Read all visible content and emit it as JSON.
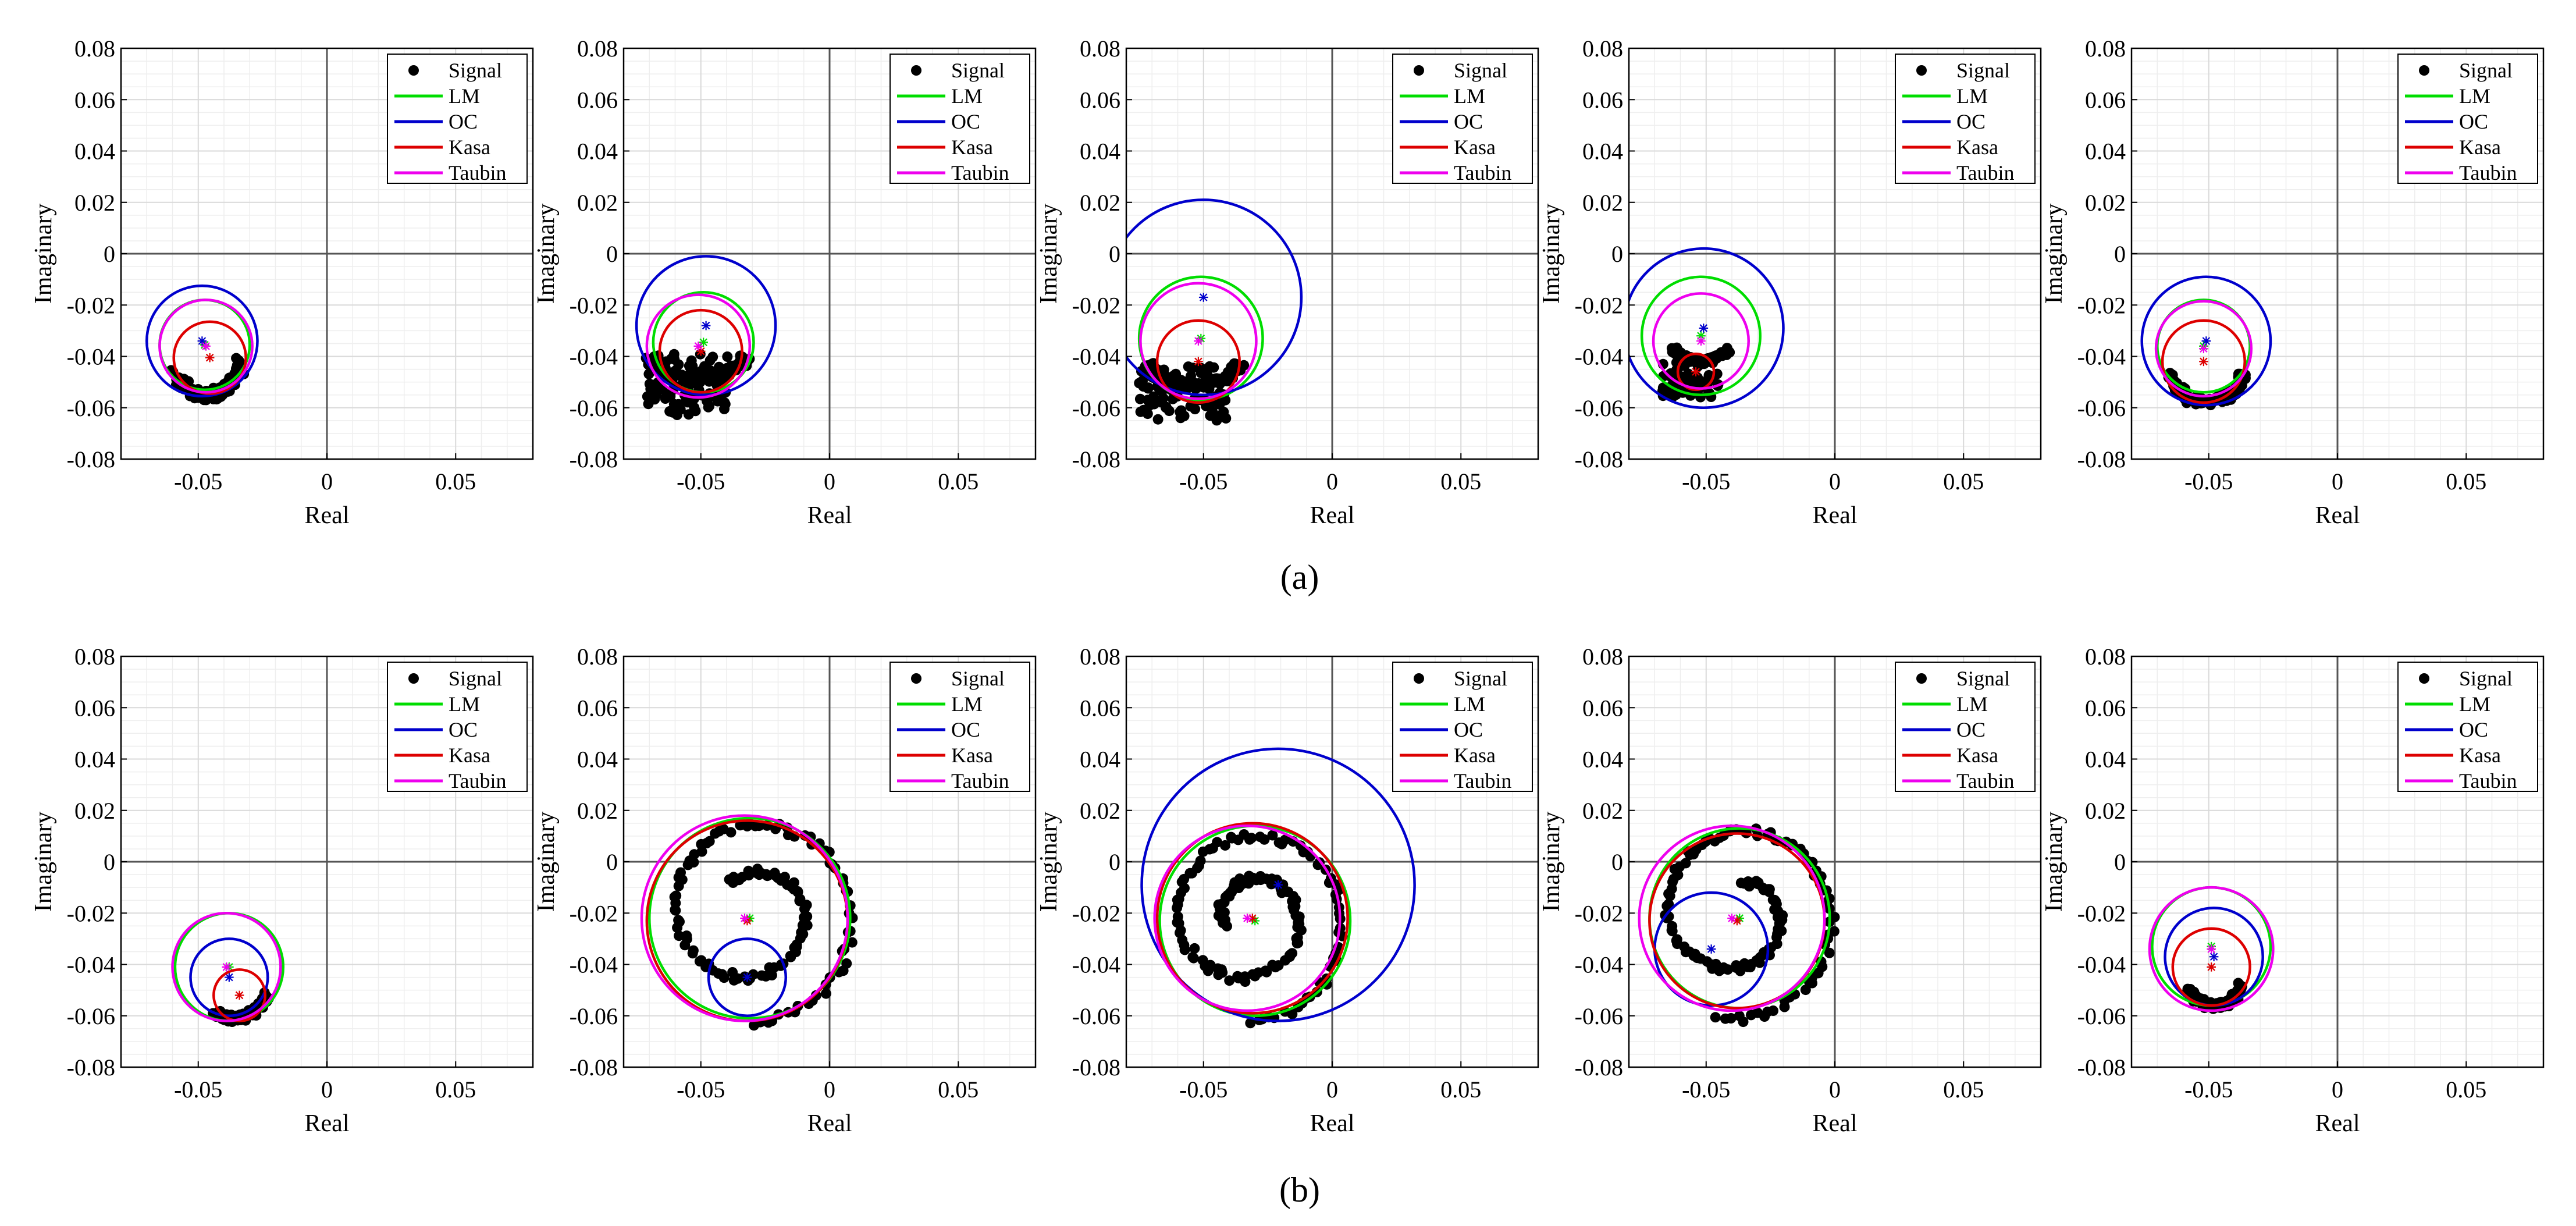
{
  "figure": {
    "panel_labels": [
      "(a)",
      "(b)"
    ]
  },
  "colors": {
    "signal": "#000000",
    "LM": "#00dd00",
    "OC": "#0000cc",
    "Kasa": "#dd0000",
    "Taubin": "#ee00ee",
    "axis_line": "#555555",
    "grid": "#d9d9d9",
    "grid_minor": "#eeeeee"
  },
  "chart_data": [
    {
      "type": "scatter",
      "row": "a",
      "title": "",
      "xlabel": "Real",
      "ylabel": "Imaginary",
      "xlim": [
        -0.08,
        0.08
      ],
      "ylim": [
        -0.08,
        0.08
      ],
      "xticks": [
        -0.05,
        0,
        0.05
      ],
      "xtick_labels": [
        "-0.05",
        "0",
        "0.05"
      ],
      "yticks": [
        0.08,
        0.06,
        0.04,
        0.02,
        0,
        -0.02,
        -0.04,
        -0.06,
        -0.08
      ],
      "ytick_labels": [
        "0.08",
        "0.06",
        "0.04",
        "0.02",
        "0",
        "-0.02",
        "-0.04",
        "-0.06",
        "-0.08"
      ],
      "legend": [
        "Signal",
        "LM",
        "OC",
        "Kasa",
        "Taubin"
      ],
      "legend_location": "top-right",
      "signal": {
        "shape": "arc",
        "cx": -0.047,
        "cy": -0.037,
        "rx": 0.014,
        "ry": 0.018,
        "a0": 210,
        "a1": 345,
        "spread": 0.0022,
        "n": 110,
        "seed": 11
      },
      "circles": [
        {
          "name": "LM",
          "cx": -0.0475,
          "cy": -0.0355,
          "r": 0.0175
        },
        {
          "name": "OC",
          "cx": -0.0485,
          "cy": -0.034,
          "r": 0.0215
        },
        {
          "name": "Kasa",
          "cx": -0.0455,
          "cy": -0.0405,
          "r": 0.014
        },
        {
          "name": "Taubin",
          "cx": -0.047,
          "cy": -0.036,
          "r": 0.018
        }
      ]
    },
    {
      "type": "scatter",
      "row": "a",
      "title": "",
      "xlabel": "Real",
      "ylabel": "Imaginary",
      "xlim": [
        -0.08,
        0.08
      ],
      "ylim": [
        -0.08,
        0.08
      ],
      "xticks": [
        -0.05,
        0,
        0.05
      ],
      "xtick_labels": [
        "-0.05",
        "0",
        "0.05"
      ],
      "yticks": [
        0.08,
        0.06,
        0.04,
        0.02,
        0,
        -0.02,
        -0.04,
        -0.06,
        -0.08
      ],
      "ytick_labels": [
        "0.08",
        "0.06",
        "0.04",
        "0.02",
        "0",
        "-0.02",
        "-0.04",
        "-0.06",
        "-0.08"
      ],
      "legend": [
        "Signal",
        "LM",
        "OC",
        "Kasa",
        "Taubin"
      ],
      "legend_location": "top-right",
      "signal": {
        "shape": "cluster",
        "cx": -0.055,
        "cy": -0.051,
        "rx": 0.016,
        "ry": 0.012,
        "ring_r": 0.021,
        "n": 180,
        "seed": 23
      },
      "circles": [
        {
          "name": "LM",
          "cx": -0.049,
          "cy": -0.0345,
          "r": 0.0195
        },
        {
          "name": "OC",
          "cx": -0.048,
          "cy": -0.028,
          "r": 0.027
        },
        {
          "name": "Kasa",
          "cx": -0.05,
          "cy": -0.038,
          "r": 0.016
        },
        {
          "name": "Taubin",
          "cx": -0.051,
          "cy": -0.036,
          "r": 0.02
        }
      ]
    },
    {
      "type": "scatter",
      "row": "a",
      "title": "",
      "xlabel": "Real",
      "ylabel": "Imaginary",
      "xlim": [
        -0.08,
        0.08
      ],
      "ylim": [
        -0.08,
        0.08
      ],
      "xticks": [
        -0.05,
        0,
        0.05
      ],
      "xtick_labels": [
        "-0.05",
        "0",
        "0.05"
      ],
      "yticks": [
        0.08,
        0.06,
        0.04,
        0.02,
        0,
        -0.02,
        -0.04,
        -0.06,
        -0.08
      ],
      "ytick_labels": [
        "0.08",
        "0.06",
        "0.04",
        "0.02",
        "0",
        "-0.02",
        "-0.04",
        "-0.06",
        "-0.08"
      ],
      "legend": [
        "Signal",
        "LM",
        "OC",
        "Kasa",
        "Taubin"
      ],
      "legend_location": "top-right",
      "signal": {
        "shape": "cluster",
        "cx": -0.058,
        "cy": -0.054,
        "rx": 0.017,
        "ry": 0.011,
        "ring_r": 0.02,
        "n": 200,
        "seed": 37
      },
      "circles": [
        {
          "name": "LM",
          "cx": -0.051,
          "cy": -0.033,
          "r": 0.024
        },
        {
          "name": "OC",
          "cx": -0.05,
          "cy": -0.017,
          "r": 0.038
        },
        {
          "name": "Kasa",
          "cx": -0.052,
          "cy": -0.042,
          "r": 0.016
        },
        {
          "name": "Taubin",
          "cx": -0.052,
          "cy": -0.034,
          "r": 0.0225
        }
      ]
    },
    {
      "type": "scatter",
      "row": "a",
      "title": "",
      "xlabel": "Real",
      "ylabel": "Imaginary",
      "xlim": [
        -0.08,
        0.08
      ],
      "ylim": [
        -0.08,
        0.08
      ],
      "xticks": [
        -0.05,
        0,
        0.05
      ],
      "xtick_labels": [
        "-0.05",
        "0",
        "0.05"
      ],
      "yticks": [
        0.08,
        0.06,
        0.04,
        0.02,
        0,
        -0.02,
        -0.04,
        -0.06,
        -0.08
      ],
      "ytick_labels": [
        "0.08",
        "0.06",
        "0.04",
        "0.02",
        "0",
        "-0.02",
        "-0.04",
        "-0.06",
        "-0.08"
      ],
      "legend": [
        "Signal",
        "LM",
        "OC",
        "Kasa",
        "Taubin"
      ],
      "legend_location": "top-right",
      "signal": {
        "shape": "cluster",
        "cx": -0.056,
        "cy": -0.049,
        "rx": 0.011,
        "ry": 0.007,
        "ring_r": 0.012,
        "n": 150,
        "seed": 51
      },
      "circles": [
        {
          "name": "LM",
          "cx": -0.052,
          "cy": -0.032,
          "r": 0.023
        },
        {
          "name": "OC",
          "cx": -0.051,
          "cy": -0.029,
          "r": 0.031
        },
        {
          "name": "Kasa",
          "cx": -0.054,
          "cy": -0.046,
          "r": 0.007
        },
        {
          "name": "Taubin",
          "cx": -0.052,
          "cy": -0.034,
          "r": 0.0185
        }
      ]
    },
    {
      "type": "scatter",
      "row": "a",
      "title": "",
      "xlabel": "Real",
      "ylabel": "Imaginary",
      "xlim": [
        -0.08,
        0.08
      ],
      "ylim": [
        -0.08,
        0.08
      ],
      "xticks": [
        -0.05,
        0,
        0.05
      ],
      "xtick_labels": [
        "-0.05",
        "0",
        "0.05"
      ],
      "yticks": [
        0.08,
        0.06,
        0.04,
        0.02,
        0,
        -0.02,
        -0.04,
        -0.06,
        -0.08
      ],
      "ytick_labels": [
        "0.08",
        "0.06",
        "0.04",
        "0.02",
        "0",
        "-0.02",
        "-0.04",
        "-0.06",
        "-0.08"
      ],
      "legend": [
        "Signal",
        "LM",
        "OC",
        "Kasa",
        "Taubin"
      ],
      "legend_location": "top-right",
      "signal": {
        "shape": "arc",
        "cx": -0.051,
        "cy": -0.039,
        "rx": 0.016,
        "ry": 0.019,
        "a0": 205,
        "a1": 335,
        "spread": 0.0016,
        "n": 110,
        "seed": 67
      },
      "circles": [
        {
          "name": "LM",
          "cx": -0.052,
          "cy": -0.036,
          "r": 0.018
        },
        {
          "name": "OC",
          "cx": -0.051,
          "cy": -0.034,
          "r": 0.025
        },
        {
          "name": "Kasa",
          "cx": -0.052,
          "cy": -0.042,
          "r": 0.016
        },
        {
          "name": "Taubin",
          "cx": -0.052,
          "cy": -0.037,
          "r": 0.0185
        }
      ]
    },
    {
      "type": "scatter",
      "row": "b",
      "title": "",
      "xlabel": "Real",
      "ylabel": "Imaginary",
      "xlim": [
        -0.08,
        0.08
      ],
      "ylim": [
        -0.08,
        0.08
      ],
      "xticks": [
        -0.05,
        0,
        0.05
      ],
      "xtick_labels": [
        "-0.05",
        "0",
        "0.05"
      ],
      "yticks": [
        0.08,
        0.06,
        0.04,
        0.02,
        0,
        -0.02,
        -0.04,
        -0.06,
        -0.08
      ],
      "ytick_labels": [
        "0.08",
        "0.06",
        "0.04",
        "0.02",
        "0",
        "-0.02",
        "-0.04",
        "-0.06",
        "-0.08"
      ],
      "legend": [
        "Signal",
        "LM",
        "OC",
        "Kasa",
        "Taubin"
      ],
      "legend_location": "top-right",
      "signal": {
        "shape": "arc",
        "cx": -0.036,
        "cy": -0.047,
        "rx": 0.013,
        "ry": 0.014,
        "a0": 235,
        "a1": 340,
        "spread": 0.0014,
        "n": 90,
        "seed": 79
      },
      "circles": [
        {
          "name": "LM",
          "cx": -0.038,
          "cy": -0.041,
          "r": 0.021
        },
        {
          "name": "OC",
          "cx": -0.038,
          "cy": -0.045,
          "r": 0.015
        },
        {
          "name": "Kasa",
          "cx": -0.034,
          "cy": -0.052,
          "r": 0.01
        },
        {
          "name": "Taubin",
          "cx": -0.039,
          "cy": -0.041,
          "r": 0.021
        }
      ]
    },
    {
      "type": "scatter",
      "row": "b",
      "title": "",
      "xlabel": "Real",
      "ylabel": "Imaginary",
      "xlim": [
        -0.08,
        0.08
      ],
      "ylim": [
        -0.08,
        0.08
      ],
      "xticks": [
        -0.05,
        0,
        0.05
      ],
      "xtick_labels": [
        "-0.05",
        "0",
        "0.05"
      ],
      "yticks": [
        0.08,
        0.06,
        0.04,
        0.02,
        0,
        -0.02,
        -0.04,
        -0.06,
        -0.08
      ],
      "ytick_labels": [
        "0.08",
        "0.06",
        "0.04",
        "0.02",
        "0",
        "-0.02",
        "-0.04",
        "-0.06",
        "-0.08"
      ],
      "legend": [
        "Signal",
        "LM",
        "OC",
        "Kasa",
        "Taubin"
      ],
      "legend_location": "top-right",
      "signal": {
        "shape": "spiral",
        "cx": -0.03,
        "cy": -0.02,
        "r0": 0.043,
        "r1": 0.014,
        "turns": 1.6,
        "start": 270,
        "yscale": 1.0,
        "n": 150,
        "seed": 83
      },
      "circles": [
        {
          "name": "LM",
          "cx": -0.031,
          "cy": -0.022,
          "r": 0.039
        },
        {
          "name": "OC",
          "cx": -0.032,
          "cy": -0.045,
          "r": 0.015
        },
        {
          "name": "Kasa",
          "cx": -0.032,
          "cy": -0.023,
          "r": 0.039
        },
        {
          "name": "Taubin",
          "cx": -0.033,
          "cy": -0.022,
          "r": 0.04
        }
      ]
    },
    {
      "type": "scatter",
      "row": "b",
      "title": "",
      "xlabel": "Real",
      "ylabel": "Imaginary",
      "xlim": [
        -0.08,
        0.08
      ],
      "ylim": [
        -0.08,
        0.08
      ],
      "xticks": [
        -0.05,
        0,
        0.05
      ],
      "xtick_labels": [
        "-0.05",
        "0",
        "0.05"
      ],
      "yticks": [
        0.08,
        0.06,
        0.04,
        0.02,
        0,
        -0.02,
        -0.04,
        -0.06,
        -0.08
      ],
      "ytick_labels": [
        "0.08",
        "0.06",
        "0.04",
        "0.02",
        "0",
        "-0.02",
        "-0.04",
        "-0.06",
        "-0.08"
      ],
      "legend": [
        "Signal",
        "LM",
        "OC",
        "Kasa",
        "Taubin"
      ],
      "legend_location": "top-right",
      "signal": {
        "shape": "spiral",
        "cx": -0.032,
        "cy": -0.022,
        "r0": 0.04,
        "r1": 0.01,
        "turns": 1.8,
        "start": 270,
        "yscale": 1.0,
        "n": 170,
        "seed": 97
      },
      "circles": [
        {
          "name": "LM",
          "cx": -0.03,
          "cy": -0.023,
          "r": 0.037
        },
        {
          "name": "OC",
          "cx": -0.021,
          "cy": -0.009,
          "r": 0.053
        },
        {
          "name": "Kasa",
          "cx": -0.031,
          "cy": -0.022,
          "r": 0.037
        },
        {
          "name": "Taubin",
          "cx": -0.033,
          "cy": -0.022,
          "r": 0.036
        }
      ]
    },
    {
      "type": "scatter",
      "row": "b",
      "title": "",
      "xlabel": "Real",
      "ylabel": "Imaginary",
      "xlim": [
        -0.08,
        0.08
      ],
      "ylim": [
        -0.08,
        0.08
      ],
      "xticks": [
        -0.05,
        0,
        0.05
      ],
      "xtick_labels": [
        "-0.05",
        "0",
        "0.05"
      ],
      "yticks": [
        0.08,
        0.06,
        0.04,
        0.02,
        0,
        -0.02,
        -0.04,
        -0.06,
        -0.08
      ],
      "ytick_labels": [
        "0.08",
        "0.06",
        "0.04",
        "0.02",
        "0",
        "-0.02",
        "-0.04",
        "-0.06",
        "-0.08"
      ],
      "legend": [
        "Signal",
        "LM",
        "OC",
        "Kasa",
        "Taubin"
      ],
      "legend_location": "top-right",
      "signal": {
        "shape": "spiral",
        "cx": -0.038,
        "cy": -0.02,
        "r0": 0.042,
        "r1": 0.012,
        "turns": 1.5,
        "start": 260,
        "yscale": 1.0,
        "n": 150,
        "seed": 101
      },
      "circles": [
        {
          "name": "LM",
          "cx": -0.037,
          "cy": -0.022,
          "r": 0.035
        },
        {
          "name": "OC",
          "cx": -0.048,
          "cy": -0.034,
          "r": 0.022
        },
        {
          "name": "Kasa",
          "cx": -0.038,
          "cy": -0.023,
          "r": 0.034
        },
        {
          "name": "Taubin",
          "cx": -0.04,
          "cy": -0.022,
          "r": 0.036
        }
      ]
    },
    {
      "type": "scatter",
      "row": "b",
      "title": "",
      "xlabel": "Real",
      "ylabel": "Imaginary",
      "xlim": [
        -0.08,
        0.08
      ],
      "ylim": [
        -0.08,
        0.08
      ],
      "xticks": [
        -0.05,
        0,
        0.05
      ],
      "xtick_labels": [
        "-0.05",
        "0",
        "0.05"
      ],
      "yticks": [
        0.08,
        0.06,
        0.04,
        0.02,
        0,
        -0.02,
        -0.04,
        -0.06,
        -0.08
      ],
      "ytick_labels": [
        "0.08",
        "0.06",
        "0.04",
        "0.02",
        "0",
        "-0.02",
        "-0.04",
        "-0.06",
        "-0.08"
      ],
      "legend": [
        "Signal",
        "LM",
        "OC",
        "Kasa",
        "Taubin"
      ],
      "legend_location": "top-right",
      "signal": {
        "shape": "arc",
        "cx": -0.048,
        "cy": -0.042,
        "rx": 0.012,
        "ry": 0.014,
        "a0": 210,
        "a1": 335,
        "spread": 0.0014,
        "n": 90,
        "seed": 113
      },
      "circles": [
        {
          "name": "LM",
          "cx": -0.049,
          "cy": -0.033,
          "r": 0.023
        },
        {
          "name": "OC",
          "cx": -0.048,
          "cy": -0.037,
          "r": 0.019
        },
        {
          "name": "Kasa",
          "cx": -0.049,
          "cy": -0.041,
          "r": 0.015
        },
        {
          "name": "Taubin",
          "cx": -0.049,
          "cy": -0.034,
          "r": 0.024
        }
      ]
    }
  ]
}
